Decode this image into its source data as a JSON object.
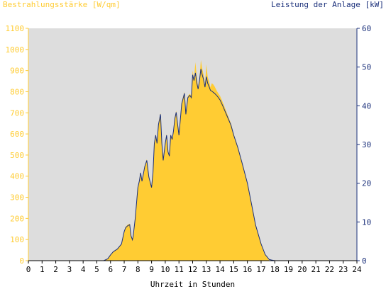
{
  "colors": {
    "irradiance": "#ffcc33",
    "power": "#1a2f7a",
    "plot_bg": "#dddddd",
    "axis_left": "#ffcc33",
    "axis_right": "#1a2f7a",
    "xaxis": "#000000"
  },
  "chart_data": {
    "type": "area",
    "title_left": "Bestrahlungsstärke [W/qm]",
    "title_right": "Leistung der Anlage [kW]",
    "xlabel": "Uhrzeit in Stunden",
    "xlim": [
      0,
      24
    ],
    "xticks": [
      "0",
      "1",
      "2",
      "3",
      "4",
      "5",
      "6",
      "7",
      "8",
      "9",
      "10",
      "11",
      "12",
      "13",
      "14",
      "15",
      "16",
      "17",
      "18",
      "19",
      "20",
      "21",
      "22",
      "23",
      "24"
    ],
    "y_left": {
      "lim": [
        0,
        1100
      ],
      "ticks": [
        "0",
        "100",
        "200",
        "300",
        "400",
        "500",
        "600",
        "700",
        "800",
        "900",
        "1000",
        "1100"
      ]
    },
    "y_right": {
      "lim": [
        0,
        60
      ],
      "ticks": [
        "0",
        "10",
        "20",
        "30",
        "40",
        "50",
        "60"
      ]
    },
    "series": [
      {
        "name": "Bestrahlungsstärke [W/qm]",
        "axis": "left",
        "kind": "area",
        "x": [
          0,
          5.5,
          5.8,
          6.0,
          6.2,
          6.5,
          6.8,
          7.0,
          7.1,
          7.25,
          7.4,
          7.5,
          7.6,
          7.65,
          7.8,
          8.0,
          8.1,
          8.2,
          8.3,
          8.5,
          8.65,
          8.8,
          9.0,
          9.1,
          9.2,
          9.3,
          9.4,
          9.5,
          9.65,
          9.75,
          9.85,
          10.0,
          10.1,
          10.2,
          10.3,
          10.4,
          10.5,
          10.6,
          10.7,
          10.8,
          11.0,
          11.2,
          11.4,
          11.5,
          11.65,
          11.8,
          11.9,
          12.0,
          12.1,
          12.2,
          12.3,
          12.4,
          12.5,
          12.6,
          12.7,
          12.8,
          12.9,
          13.0,
          13.1,
          13.2,
          13.3,
          13.4,
          13.5,
          13.6,
          13.8,
          14.0,
          14.2,
          14.5,
          14.8,
          15.0,
          15.3,
          15.6,
          16.0,
          16.3,
          16.6,
          17.0,
          17.3,
          17.6,
          18.0,
          18.2,
          18.5,
          18.8,
          19.0,
          19.2,
          19.4,
          19.6,
          19.8,
          20.0,
          24
        ],
        "y": [
          0,
          0,
          10,
          30,
          45,
          55,
          80,
          140,
          160,
          170,
          175,
          120,
          100,
          115,
          200,
          350,
          380,
          420,
          380,
          450,
          480,
          400,
          350,
          420,
          560,
          600,
          560,
          650,
          700,
          560,
          480,
          560,
          600,
          520,
          500,
          600,
          580,
          620,
          680,
          710,
          600,
          750,
          800,
          700,
          780,
          790,
          780,
          900,
          860,
          940,
          870,
          820,
          860,
          950,
          910,
          880,
          830,
          930,
          870,
          850,
          820,
          840,
          835,
          825,
          800,
          780,
          750,
          700,
          650,
          600,
          540,
          470,
          370,
          270,
          170,
          80,
          30,
          0,
          0,
          0,
          0,
          0,
          0,
          0,
          0,
          0,
          0,
          0,
          0
        ]
      },
      {
        "name": "Leistung der Anlage [kW]",
        "axis": "right",
        "kind": "line",
        "x": [
          0,
          5.5,
          5.8,
          6.0,
          6.2,
          6.5,
          6.8,
          7.0,
          7.1,
          7.25,
          7.4,
          7.5,
          7.6,
          7.65,
          7.8,
          8.0,
          8.1,
          8.2,
          8.3,
          8.5,
          8.65,
          8.8,
          9.0,
          9.1,
          9.2,
          9.3,
          9.4,
          9.5,
          9.65,
          9.75,
          9.85,
          10.0,
          10.1,
          10.2,
          10.3,
          10.4,
          10.5,
          10.6,
          10.7,
          10.8,
          11.0,
          11.2,
          11.4,
          11.5,
          11.65,
          11.8,
          11.9,
          12.0,
          12.1,
          12.2,
          12.3,
          12.4,
          12.5,
          12.6,
          12.7,
          12.8,
          12.9,
          13.0,
          13.1,
          13.2,
          13.3,
          13.4,
          13.5,
          13.6,
          13.8,
          14.0,
          14.2,
          14.5,
          14.8,
          15.0,
          15.3,
          15.6,
          16.0,
          16.3,
          16.6,
          17.0,
          17.3,
          17.6,
          18.0,
          18.2,
          18.5,
          18.8,
          19.0,
          19.2,
          19.4,
          19.6,
          19.8,
          20.0,
          24
        ],
        "y": [
          0,
          0,
          0.5,
          1.5,
          2.3,
          3.0,
          4.3,
          7.5,
          8.5,
          9.0,
          9.3,
          6.4,
          5.4,
          6.2,
          10.8,
          18.9,
          20.5,
          22.7,
          20.5,
          24.3,
          25.9,
          21.6,
          18.9,
          22.7,
          30.3,
          32.4,
          30.3,
          35.1,
          37.8,
          30.3,
          25.9,
          30.3,
          32.4,
          28.1,
          27.0,
          32.4,
          31.3,
          33.5,
          36.7,
          38.3,
          32.4,
          40.5,
          43.2,
          37.8,
          42.1,
          42.7,
          42.1,
          48.0,
          46.5,
          48.5,
          46.0,
          44.3,
          46.5,
          49.5,
          48.0,
          46.8,
          44.8,
          47.5,
          45.8,
          45.0,
          44.0,
          43.8,
          43.5,
          43.2,
          42.5,
          41.5,
          40.0,
          37.5,
          35.0,
          32.4,
          29.2,
          25.4,
          20.0,
          14.6,
          9.2,
          4.3,
          1.6,
          0.3,
          0,
          0,
          0,
          0,
          0,
          0,
          0,
          0,
          0,
          0,
          0
        ]
      }
    ],
    "legend": "none",
    "grid": false
  }
}
